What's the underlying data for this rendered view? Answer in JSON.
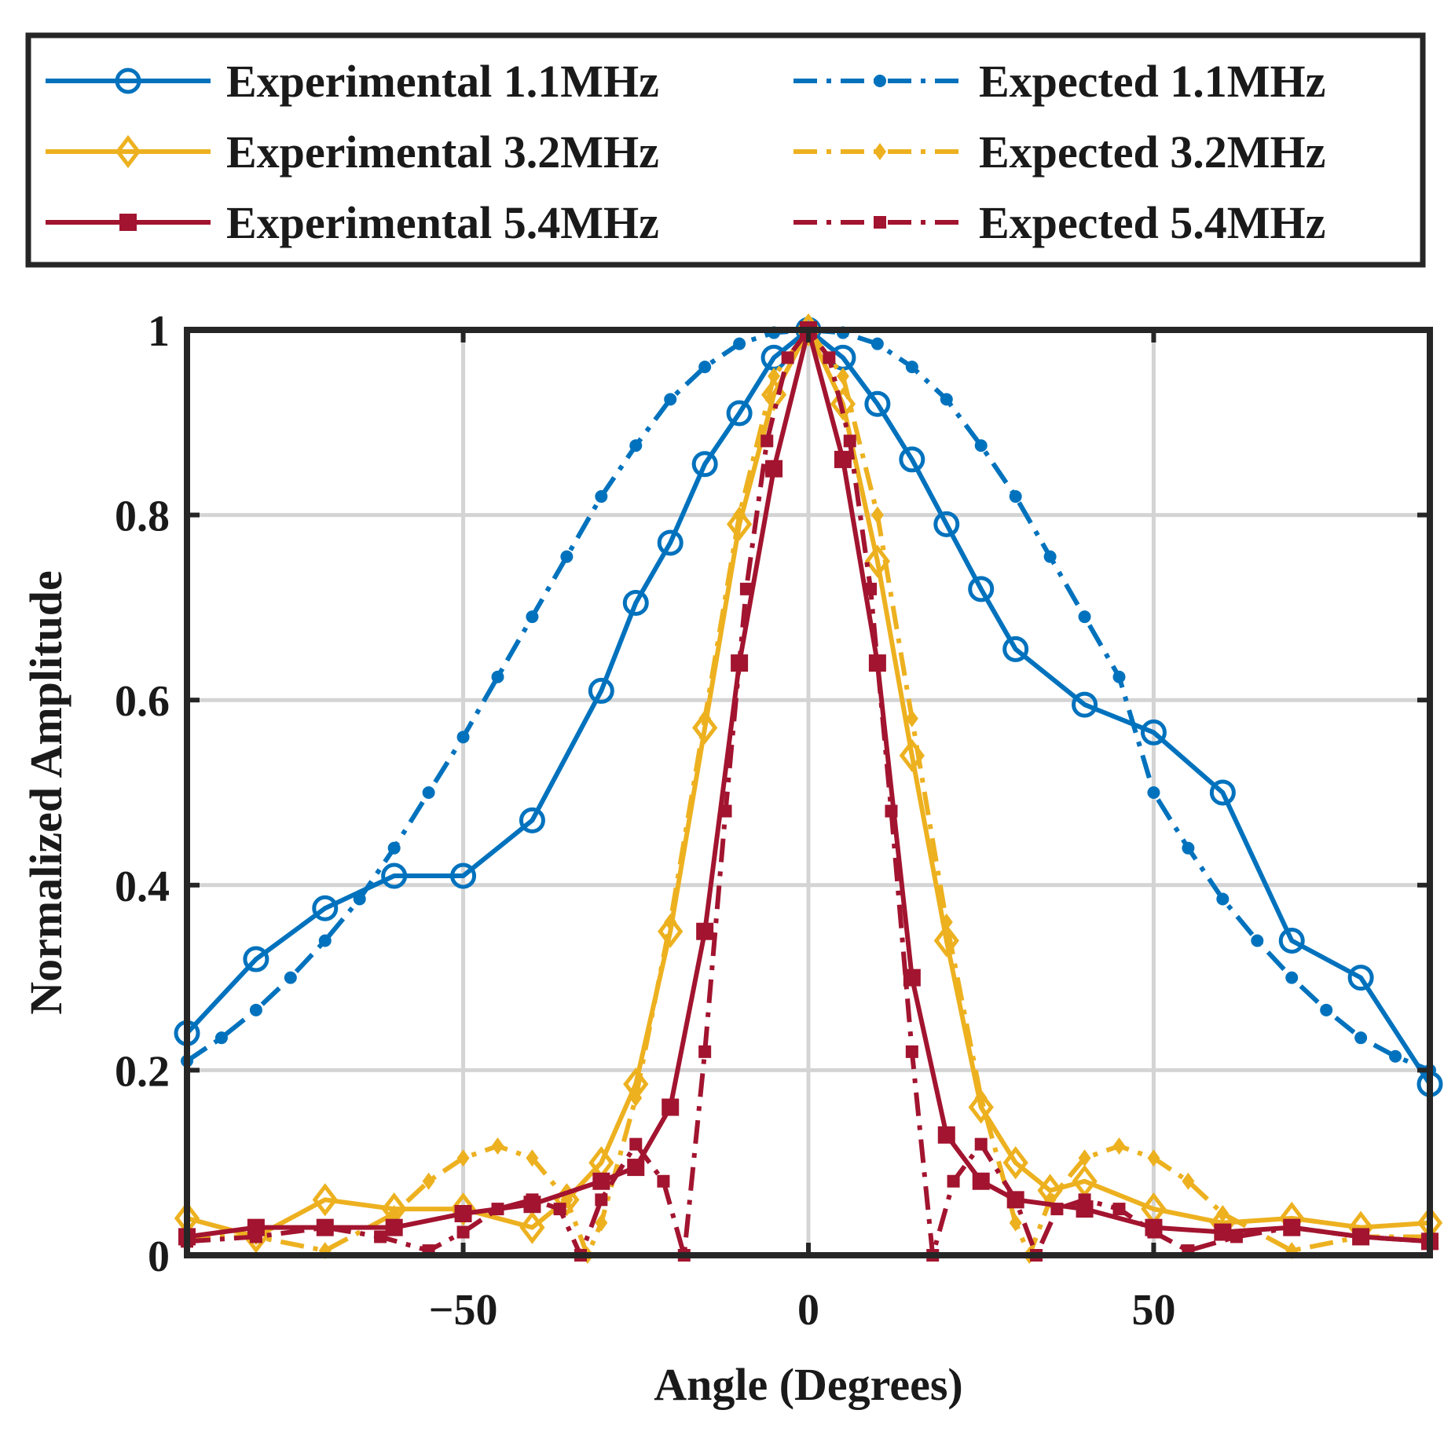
{
  "chart_data": {
    "type": "line",
    "title": "",
    "xlabel": "Angle (Degrees)",
    "ylabel": "Normalized Amplitude",
    "xlim": [
      -90,
      90
    ],
    "ylim": [
      0,
      1
    ],
    "xticks": [
      -50,
      0,
      50
    ],
    "yticks": [
      0,
      0.2,
      0.4,
      0.6,
      0.8,
      1
    ],
    "xtick_labels": [
      "−50",
      "0",
      "50"
    ],
    "ytick_labels": [
      "0",
      "0.2",
      "0.4",
      "0.6",
      "0.8",
      "1"
    ],
    "grid": true,
    "legend_position": "top-outside",
    "colors": {
      "blue": "#0072BD",
      "yellow": "#EDB120",
      "red": "#A2142F"
    },
    "series": [
      {
        "name": "Experimental 1.1MHz",
        "color": "#0072BD",
        "style": "solid",
        "marker": "circle",
        "x": [
          -90,
          -80,
          -70,
          -60,
          -50,
          -40,
          -30,
          -25,
          -20,
          -15,
          -10,
          -5,
          0,
          5,
          10,
          15,
          20,
          25,
          30,
          40,
          50,
          60,
          70,
          80,
          90
        ],
        "y": [
          0.24,
          0.32,
          0.375,
          0.41,
          0.41,
          0.47,
          0.61,
          0.705,
          0.77,
          0.855,
          0.91,
          0.97,
          1.0,
          0.97,
          0.92,
          0.86,
          0.79,
          0.72,
          0.655,
          0.595,
          0.565,
          0.5,
          0.34,
          0.3,
          0.185
        ]
      },
      {
        "name": "Expected 1.1MHz",
        "color": "#0072BD",
        "style": "dashdot",
        "marker": "dot",
        "x": [
          -90,
          -85,
          -80,
          -75,
          -70,
          -65,
          -60,
          -55,
          -50,
          -45,
          -40,
          -35,
          -30,
          -25,
          -20,
          -15,
          -10,
          -5,
          0,
          5,
          10,
          15,
          20,
          25,
          30,
          35,
          40,
          45,
          50,
          55,
          60,
          65,
          70,
          75,
          80,
          85,
          90
        ],
        "y": [
          0.21,
          0.235,
          0.265,
          0.3,
          0.34,
          0.385,
          0.44,
          0.5,
          0.56,
          0.625,
          0.69,
          0.755,
          0.82,
          0.875,
          0.925,
          0.96,
          0.985,
          0.997,
          1.0,
          0.997,
          0.985,
          0.96,
          0.925,
          0.875,
          0.82,
          0.755,
          0.69,
          0.625,
          0.5,
          0.44,
          0.385,
          0.34,
          0.3,
          0.265,
          0.235,
          0.215,
          0.2
        ]
      },
      {
        "name": "Experimental 3.2MHz",
        "color": "#EDB120",
        "style": "solid",
        "marker": "diamond",
        "x": [
          -90,
          -80,
          -70,
          -60,
          -50,
          -40,
          -35,
          -30,
          -25,
          -20,
          -15,
          -10,
          -5,
          0,
          5,
          10,
          15,
          20,
          25,
          30,
          35,
          40,
          50,
          60,
          70,
          80,
          90
        ],
        "y": [
          0.04,
          0.02,
          0.06,
          0.05,
          0.05,
          0.03,
          0.06,
          0.1,
          0.185,
          0.35,
          0.57,
          0.79,
          0.93,
          1.0,
          0.92,
          0.75,
          0.54,
          0.34,
          0.16,
          0.1,
          0.07,
          0.08,
          0.05,
          0.035,
          0.04,
          0.03,
          0.035
        ]
      },
      {
        "name": "Expected 3.2MHz",
        "color": "#EDB120",
        "style": "dashdot",
        "marker": "diamond-small",
        "x": [
          -90,
          -80,
          -70,
          -60,
          -55,
          -50,
          -45,
          -40,
          -35,
          -32,
          -30,
          -25,
          -20,
          -15,
          -10,
          -5,
          0,
          5,
          10,
          15,
          20,
          25,
          30,
          32,
          35,
          40,
          45,
          50,
          55,
          60,
          70,
          80,
          90
        ],
        "y": [
          0.02,
          0.02,
          0.005,
          0.045,
          0.08,
          0.105,
          0.118,
          0.105,
          0.06,
          0.0,
          0.035,
          0.17,
          0.36,
          0.58,
          0.8,
          0.95,
          1.0,
          0.95,
          0.8,
          0.58,
          0.36,
          0.17,
          0.035,
          0.0,
          0.06,
          0.105,
          0.118,
          0.105,
          0.08,
          0.045,
          0.005,
          0.02,
          0.02
        ]
      },
      {
        "name": "Experimental 5.4MHz",
        "color": "#A2142F",
        "style": "solid",
        "marker": "square",
        "x": [
          -90,
          -80,
          -70,
          -60,
          -50,
          -40,
          -30,
          -25,
          -20,
          -15,
          -10,
          -5,
          0,
          5,
          10,
          15,
          20,
          25,
          30,
          40,
          50,
          60,
          70,
          80,
          90
        ],
        "y": [
          0.02,
          0.03,
          0.03,
          0.03,
          0.045,
          0.055,
          0.08,
          0.095,
          0.16,
          0.35,
          0.64,
          0.85,
          1.0,
          0.86,
          0.64,
          0.3,
          0.13,
          0.08,
          0.06,
          0.05,
          0.03,
          0.025,
          0.03,
          0.02,
          0.015
        ]
      },
      {
        "name": "Expected 5.4MHz",
        "color": "#A2142F",
        "style": "dashdot",
        "marker": "square-small",
        "x": [
          -90,
          -80,
          -70,
          -62,
          -55,
          -50,
          -45,
          -40,
          -36,
          -33,
          -30,
          -25,
          -21,
          -18,
          -15,
          -12,
          -9,
          -6,
          -3,
          0,
          3,
          6,
          9,
          12,
          15,
          18,
          21,
          25,
          30,
          33,
          36,
          40,
          45,
          50,
          55,
          62,
          70,
          80,
          90
        ],
        "y": [
          0.015,
          0.02,
          0.03,
          0.02,
          0.005,
          0.025,
          0.05,
          0.06,
          0.05,
          0.0,
          0.06,
          0.12,
          0.08,
          0.0,
          0.22,
          0.48,
          0.72,
          0.88,
          0.97,
          1.0,
          0.97,
          0.88,
          0.72,
          0.48,
          0.22,
          0.0,
          0.08,
          0.12,
          0.06,
          0.0,
          0.05,
          0.06,
          0.05,
          0.025,
          0.005,
          0.02,
          0.03,
          0.02,
          0.015
        ]
      }
    ]
  }
}
